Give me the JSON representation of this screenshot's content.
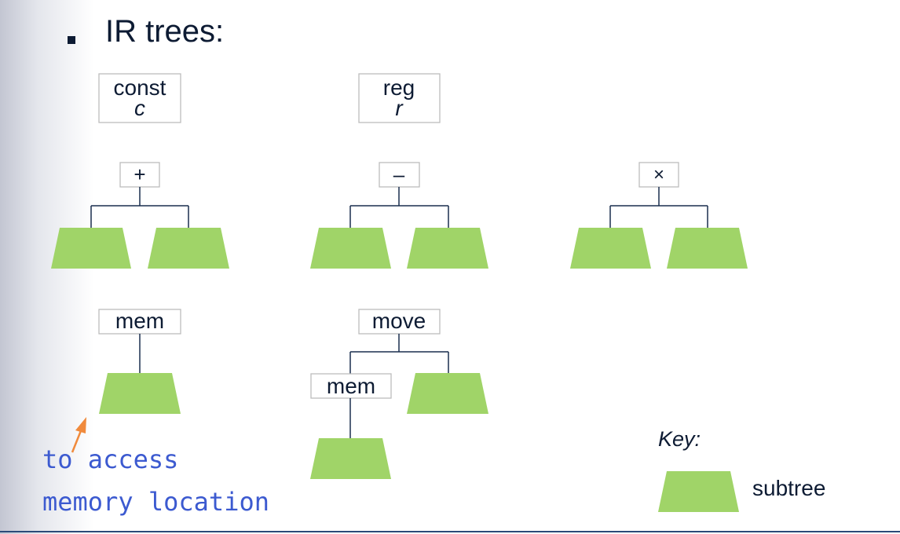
{
  "slide": {
    "heading": "IR trees:"
  },
  "nodes": {
    "const": {
      "label": "const",
      "arg": "c"
    },
    "reg": {
      "label": "reg",
      "arg": "r"
    },
    "plus": {
      "label": "+"
    },
    "minus": {
      "label": "–"
    },
    "times": {
      "label": "×"
    },
    "mem": {
      "label": "mem"
    },
    "move": {
      "label": "move"
    },
    "move_mem": {
      "label": "mem"
    }
  },
  "annotation": {
    "line1": "to access",
    "line2": "memory location",
    "color": "#3c5ad0",
    "arrow_color": "#f08a3c"
  },
  "key": {
    "title": "Key:",
    "subtree_label": "subtree"
  },
  "colors": {
    "subtree": "#a0d468",
    "text": "#0d1b33",
    "edge": "#1a2f4f"
  }
}
